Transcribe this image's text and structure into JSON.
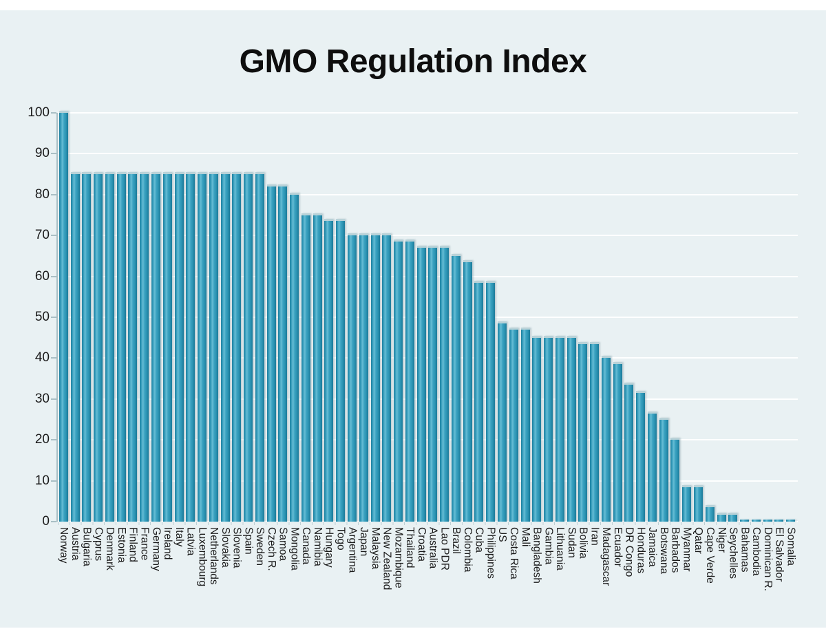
{
  "title": "GMO Regulation Index",
  "panel": {
    "background": "#e9f1f3"
  },
  "chart_data": {
    "type": "bar",
    "title": "GMO Regulation Index",
    "xlabel": "",
    "ylabel": "",
    "ylim": [
      0,
      100
    ],
    "yticks": [
      0,
      10,
      20,
      30,
      40,
      50,
      60,
      70,
      80,
      90,
      100
    ],
    "grid": "horizontal white gridlines every 10",
    "legend": "none",
    "bar_color": "#2f97b6",
    "bar_edge_color": "#1e7e9d",
    "bar_highlight_color": "#66bcd5",
    "axis_color": "#a9bfc5",
    "text_color": "#1b1b1b",
    "categories": [
      "Norway",
      "Austria",
      "Bulgaria",
      "Cyprus",
      "Denmark",
      "Estonia",
      "Finland",
      "France",
      "Germany",
      "Ireland",
      "Italy",
      "Latvia",
      "Luxembourg",
      "Netherlands",
      "Slovakia",
      "Slovenia",
      "Spain",
      "Sweden",
      "Czech R.",
      "Samoa",
      "Mongolia",
      "Canada",
      "Namibia",
      "Hungary",
      "Togo",
      "Argentina",
      "Japan",
      "Malaysia",
      "New Zealand",
      "Mozambique",
      "Thailand",
      "Croatia",
      "Australia",
      "Lao PDR",
      "Brazil",
      "Colombia",
      "Cuba",
      "Philippines",
      "US",
      "Costa Rica",
      "Mali",
      "Bangladesh",
      "Gambia",
      "Lithuania",
      "Sudan",
      "Bolivia",
      "Iran",
      "Madagascar",
      "Ecuador",
      "DR Congo",
      "Honduras",
      "Jamaica",
      "Botswana",
      "Barbados",
      "Myanmar",
      "Qatar",
      "Cape Verde",
      "Niger",
      "Seychelles",
      "Bahamas",
      "Cambodia",
      "Dominican R.",
      "El Salvador",
      "Somalia"
    ],
    "values": [
      100,
      85,
      85,
      85,
      85,
      85,
      85,
      85,
      85,
      85,
      85,
      85,
      85,
      85,
      85,
      85,
      85,
      85,
      82,
      82,
      80,
      75,
      75,
      73.5,
      73.5,
      70,
      70,
      70,
      70,
      68.5,
      68.5,
      67,
      67,
      67,
      65,
      63.5,
      58.5,
      58.5,
      48.5,
      47,
      47,
      45,
      45,
      45,
      45,
      43.5,
      43.5,
      40,
      38.5,
      33.5,
      31.5,
      26.5,
      25,
      20,
      8.5,
      8.5,
      3.5,
      1.7,
      1.7,
      0.3,
      0.3,
      0.3,
      0.3,
      0.3
    ]
  }
}
